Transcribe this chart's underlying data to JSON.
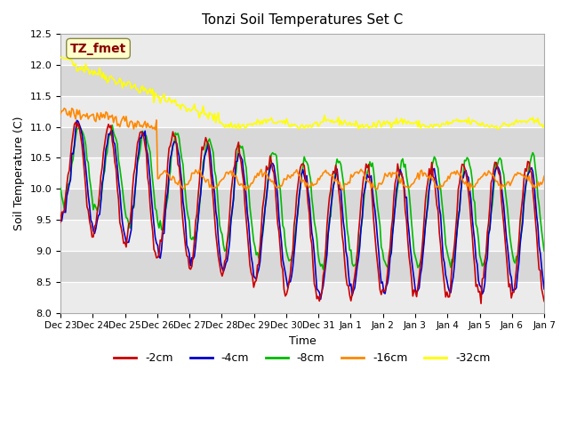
{
  "title": "Tonzi Soil Temperatures Set C",
  "xlabel": "Time",
  "ylabel": "Soil Temperature (C)",
  "ylim": [
    8.0,
    12.5
  ],
  "x_tick_labels": [
    "Dec 23",
    "Dec 24",
    "Dec 25",
    "Dec 26",
    "Dec 27",
    "Dec 28",
    "Dec 29",
    "Dec 30",
    "Dec 31",
    "Jan 1",
    "Jan 2",
    "Jan 3",
    "Jan 4",
    "Jan 5",
    "Jan 6",
    "Jan 7"
  ],
  "legend_labels": [
    "-2cm",
    "-4cm",
    "-8cm",
    "-16cm",
    "-32cm"
  ],
  "colors": {
    "2cm": "#cc0000",
    "4cm": "#0000cc",
    "8cm": "#00bb00",
    "16cm": "#ff8800",
    "32cm": "#ffff00"
  },
  "annotation_text": "TZ_fmet",
  "annotation_color": "#880000",
  "annotation_bg": "#ffffcc",
  "yticks": [
    8.0,
    8.5,
    9.0,
    9.5,
    10.0,
    10.5,
    11.0,
    11.5,
    12.0,
    12.5
  ]
}
